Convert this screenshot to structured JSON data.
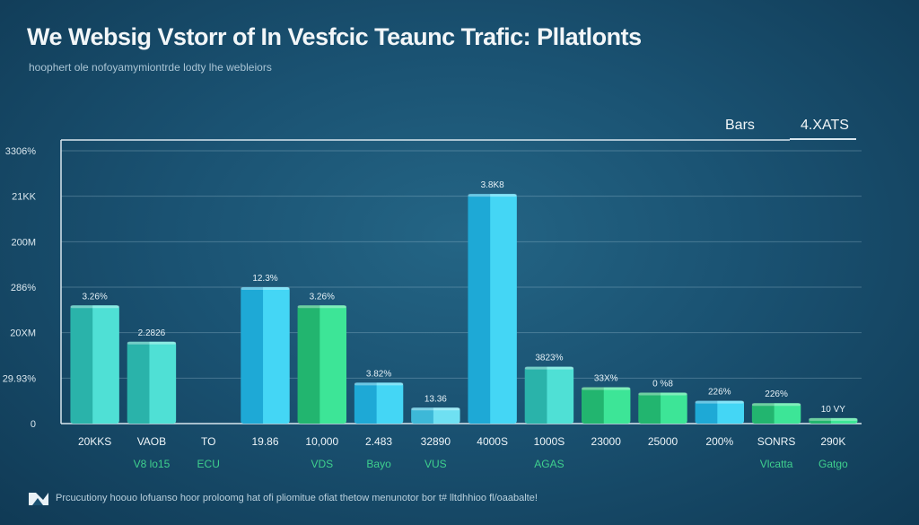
{
  "title": "We Websig Vstorr of In Vesfcic Teaunc Trafic: Pllatlonts",
  "subtitle": "hoophert ole nofoyamymiontrde lodty lhe webleiors",
  "legend": {
    "label_a": "Bars",
    "label_b": "4.XATS"
  },
  "footnote": "Prcucutiony hoouo lofuanso hoor proloomg hat ofi pliomitue ofiat thetow menunotor bor t# lltdhhioo fl/oaabalte!",
  "colors": {
    "teal": "#3fcfc4",
    "cyan": "#2fc8ea",
    "green": "#2fd787",
    "lightblue": "#58d3ea"
  },
  "chart_data": {
    "type": "bar",
    "y_ticks": [
      "0",
      "29.93%",
      "20XM",
      "286%",
      "200M",
      "21KK",
      "3306%"
    ],
    "ylim": [
      0,
      6
    ],
    "categories": [
      "20KKS",
      "VAOB",
      "TO",
      "19.86",
      "10,000",
      "2.483",
      "32890",
      "4000S",
      "1000S",
      "23000",
      "25000",
      "200%",
      "SONRS",
      "290K"
    ],
    "categories_secondary": [
      "",
      "V8 lo15",
      "ECU",
      "",
      "VDS",
      "Bayo",
      "VUS",
      "",
      "AGAS",
      "",
      "",
      "",
      "Vlcatta",
      "Gatgo"
    ],
    "values": [
      2.6,
      1.8,
      0,
      3.0,
      2.6,
      0.9,
      0.35,
      5.05,
      1.25,
      0.8,
      0.68,
      0.5,
      0.45,
      0.12
    ],
    "value_labels": [
      "3.26%",
      "2.2826",
      "",
      "12.3%",
      "3.26%",
      "3.82%",
      "13.36",
      "3.8K8",
      "3823%",
      "33X%",
      "0 %8",
      "226%",
      "226%",
      "10 VY"
    ],
    "bar_colors": [
      "teal",
      "teal",
      "",
      "cyan",
      "green",
      "cyan",
      "lightblue",
      "cyan",
      "teal",
      "green",
      "green",
      "cyan",
      "green",
      "green"
    ],
    "grid": true
  }
}
